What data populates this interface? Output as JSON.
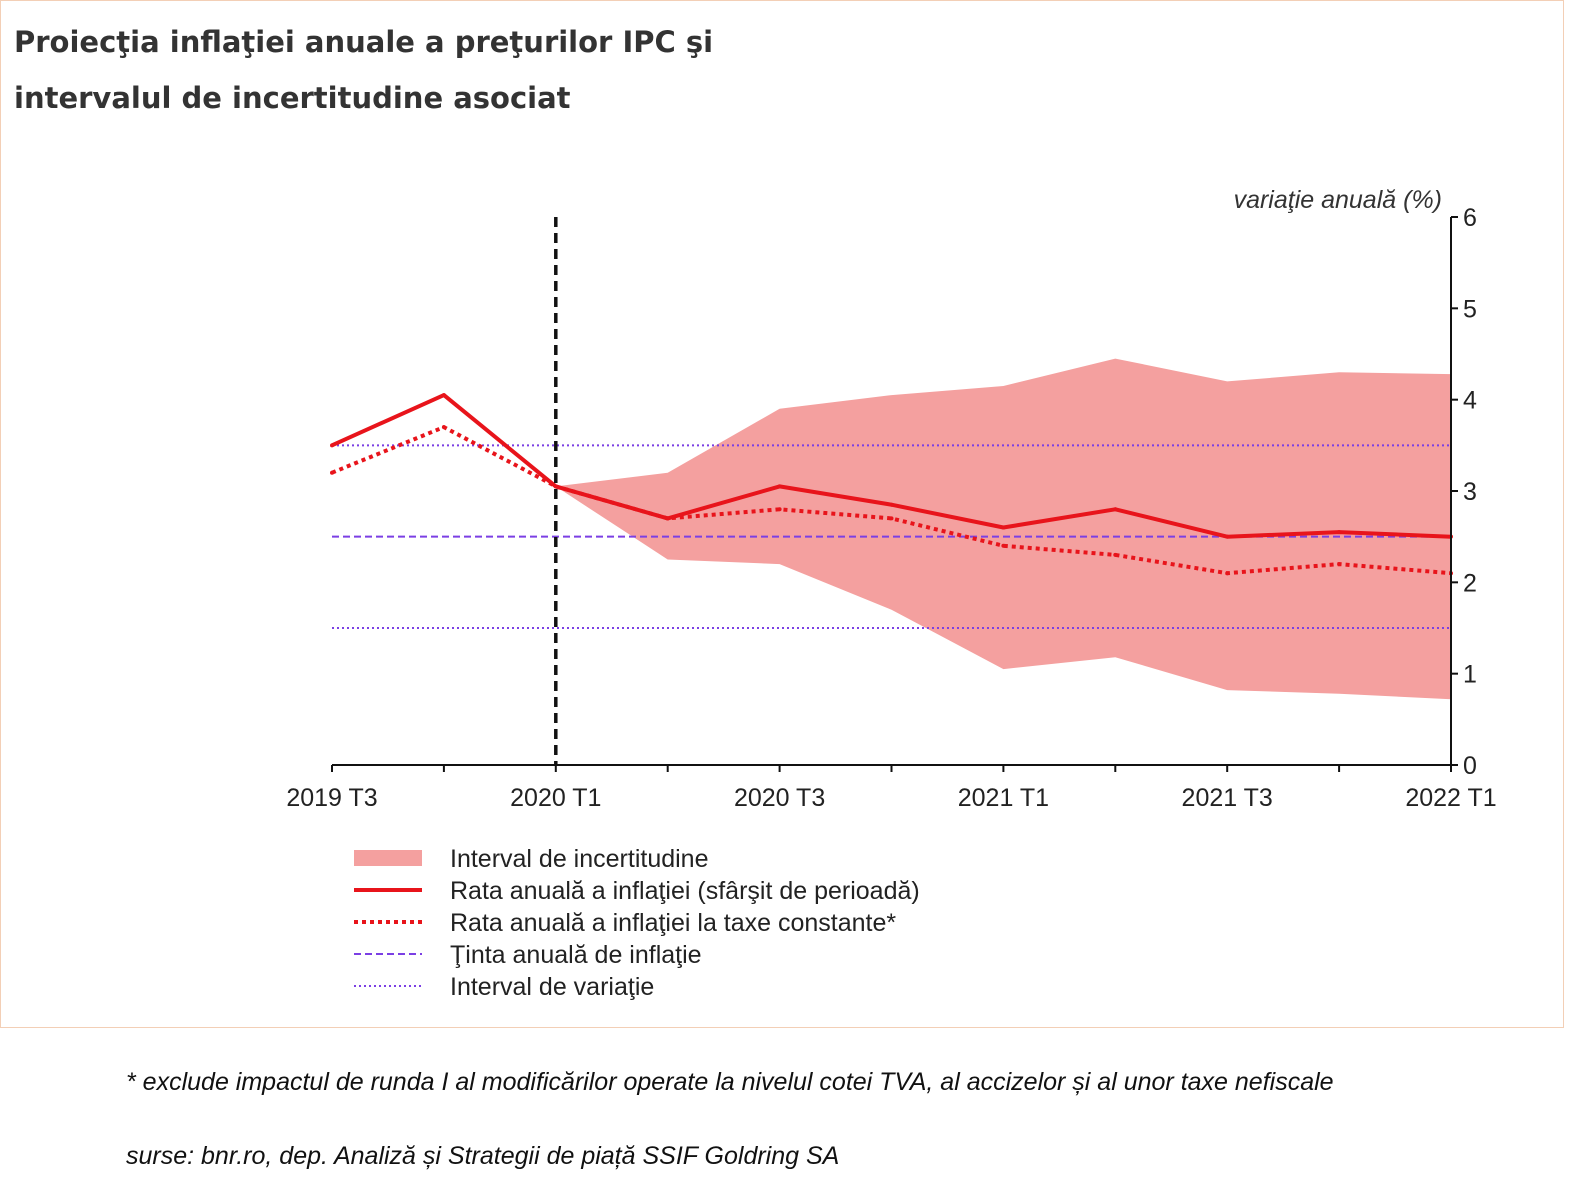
{
  "title_lines": [
    "Proiecţia inflaţiei anuale a preţurilor IPC şi",
    "intervalul de incertitudine asociat"
  ],
  "footnotes": {
    "note": "* exclude impactul de runda I al modificărilor operate la nivelul cotei TVA, al accizelor și al unor taxe nefiscale",
    "source": "surse: bnr.ro, dep. Analiză și Strategii de piață SSIF Goldring SA"
  },
  "colors": {
    "band": "#f4a09f",
    "line": "#e8141b",
    "target": "#7b3fe4",
    "vline": "#111111",
    "axis": "#111111"
  },
  "chart_data": {
    "type": "line",
    "ylabel": "variaţie anuală (%)",
    "ylim": [
      0,
      6
    ],
    "yticks": [
      "0",
      "1",
      "2",
      "3",
      "4",
      "5",
      "6"
    ],
    "x": [
      "2019 T3",
      "2019 T4",
      "2020 T1",
      "2020 T2",
      "2020 T3",
      "2020 T4",
      "2021 T1",
      "2021 T2",
      "2021 T3",
      "2021 T4",
      "2022 T1"
    ],
    "xtick_labels": [
      "2019 T3",
      "",
      "2020 T1",
      "",
      "2020 T3",
      "",
      "2021 T1",
      "",
      "2021 T3",
      "",
      "2022 T1"
    ],
    "projection_start": "2020 T1",
    "band": {
      "upper": [
        null,
        null,
        3.05,
        3.2,
        3.9,
        4.05,
        4.15,
        4.45,
        4.2,
        4.3,
        4.28
      ],
      "lower": [
        null,
        null,
        3.05,
        2.25,
        2.2,
        1.7,
        1.05,
        1.18,
        0.82,
        0.78,
        0.72
      ]
    },
    "series": [
      {
        "name": "Rata anuală a inflaţiei (sfârşit de perioadă)",
        "style": "solid",
        "values": [
          3.5,
          4.05,
          3.05,
          2.7,
          3.05,
          2.85,
          2.6,
          2.8,
          2.5,
          2.55,
          2.5
        ]
      },
      {
        "name": "Rata anuală a inflaţiei la taxe constante*",
        "style": "dotted",
        "values": [
          3.2,
          3.7,
          3.05,
          2.7,
          2.8,
          2.7,
          2.4,
          2.3,
          2.1,
          2.2,
          2.1
        ]
      }
    ],
    "target": 2.5,
    "target_range": [
      1.5,
      3.5
    ],
    "legend": {
      "position": "bottom-left",
      "entries": [
        {
          "label": "Interval de incertitudine",
          "kind": "band"
        },
        {
          "label": "Rata anuală a inflaţiei (sfârşit de perioadă)",
          "kind": "solid"
        },
        {
          "label": "Rata anuală a inflaţiei la taxe constante*",
          "kind": "dotted"
        },
        {
          "label": "Ţinta anuală de inflaţie",
          "kind": "target"
        },
        {
          "label": "Interval de variaţie",
          "kind": "range"
        }
      ]
    }
  }
}
